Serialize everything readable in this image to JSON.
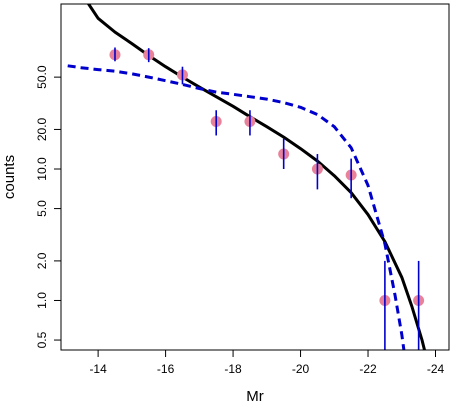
{
  "chart_data": {
    "type": "scatter",
    "xlabel": "Mr",
    "ylabel": "counts",
    "x_axis_reversed": true,
    "y_scale": "log",
    "xlim": [
      -12.9,
      -24.4
    ],
    "ylim": [
      0.42,
      180
    ],
    "x_ticks": [
      -14,
      -16,
      -18,
      -20,
      -22,
      -24
    ],
    "x_tick_labels": [
      "-14",
      "-16",
      "-18",
      "-20",
      "-22",
      "-24"
    ],
    "y_ticks": [
      0.5,
      1.0,
      2.0,
      5.0,
      10.0,
      20.0,
      50.0
    ],
    "y_tick_labels": [
      "0.5",
      "1.0",
      "2.0",
      "5.0",
      "10.0",
      "20.0",
      "50.0"
    ],
    "grid": false,
    "series": [
      {
        "kind": "points_with_errorbars",
        "marker_color": "#e8829a",
        "errorbar_color": "#0000cc",
        "points": [
          {
            "x": -14.5,
            "y": 74,
            "ylo": 66,
            "yhi": 84
          },
          {
            "x": -15.5,
            "y": 74,
            "ylo": 65,
            "yhi": 83
          },
          {
            "x": -16.5,
            "y": 52,
            "ylo": 44,
            "yhi": 60
          },
          {
            "x": -17.5,
            "y": 23,
            "ylo": 18,
            "yhi": 28
          },
          {
            "x": -18.5,
            "y": 23,
            "ylo": 18,
            "yhi": 28
          },
          {
            "x": -19.5,
            "y": 13,
            "ylo": 10,
            "yhi": 17
          },
          {
            "x": -20.5,
            "y": 10,
            "ylo": 7,
            "yhi": 13
          },
          {
            "x": -21.5,
            "y": 9,
            "ylo": 6,
            "yhi": 12
          },
          {
            "x": -22.5,
            "y": 1,
            "ylo": 0.3,
            "yhi": 2
          },
          {
            "x": -23.5,
            "y": 1,
            "ylo": 0.3,
            "yhi": 2
          }
        ]
      },
      {
        "kind": "line",
        "style": "solid",
        "color": "#000000",
        "points": [
          [
            -13.6,
            200
          ],
          [
            -14,
            140
          ],
          [
            -14.5,
            110
          ],
          [
            -15,
            90
          ],
          [
            -15.5,
            73
          ],
          [
            -16,
            60
          ],
          [
            -16.5,
            50
          ],
          [
            -17,
            42
          ],
          [
            -17.5,
            35.5
          ],
          [
            -18,
            30
          ],
          [
            -18.5,
            25
          ],
          [
            -19,
            21
          ],
          [
            -19.5,
            17.5
          ],
          [
            -20,
            14.3
          ],
          [
            -20.5,
            11.5
          ],
          [
            -21,
            8.9
          ],
          [
            -21.5,
            6.6
          ],
          [
            -22,
            4.5
          ],
          [
            -22.5,
            2.8
          ],
          [
            -23,
            1.5
          ],
          [
            -23.3,
            0.9
          ],
          [
            -23.6,
            0.5
          ],
          [
            -23.75,
            0.35
          ]
        ]
      },
      {
        "kind": "line",
        "style": "dashed",
        "color": "#0000cc",
        "points": [
          [
            -13.1,
            61
          ],
          [
            -13.5,
            59
          ],
          [
            -14,
            57
          ],
          [
            -14.5,
            55.5
          ],
          [
            -15,
            53
          ],
          [
            -15.5,
            50
          ],
          [
            -16,
            47
          ],
          [
            -16.5,
            44
          ],
          [
            -17,
            41
          ],
          [
            -17.5,
            38.5
          ],
          [
            -18,
            37
          ],
          [
            -18.5,
            35.5
          ],
          [
            -19,
            34
          ],
          [
            -19.5,
            32
          ],
          [
            -20,
            29.5
          ],
          [
            -20.5,
            26
          ],
          [
            -21,
            21
          ],
          [
            -21.5,
            14.5
          ],
          [
            -22,
            7.5
          ],
          [
            -22.5,
            2.7
          ],
          [
            -22.8,
            1.1
          ],
          [
            -23,
            0.55
          ],
          [
            -23.1,
            0.36
          ]
        ]
      }
    ]
  }
}
